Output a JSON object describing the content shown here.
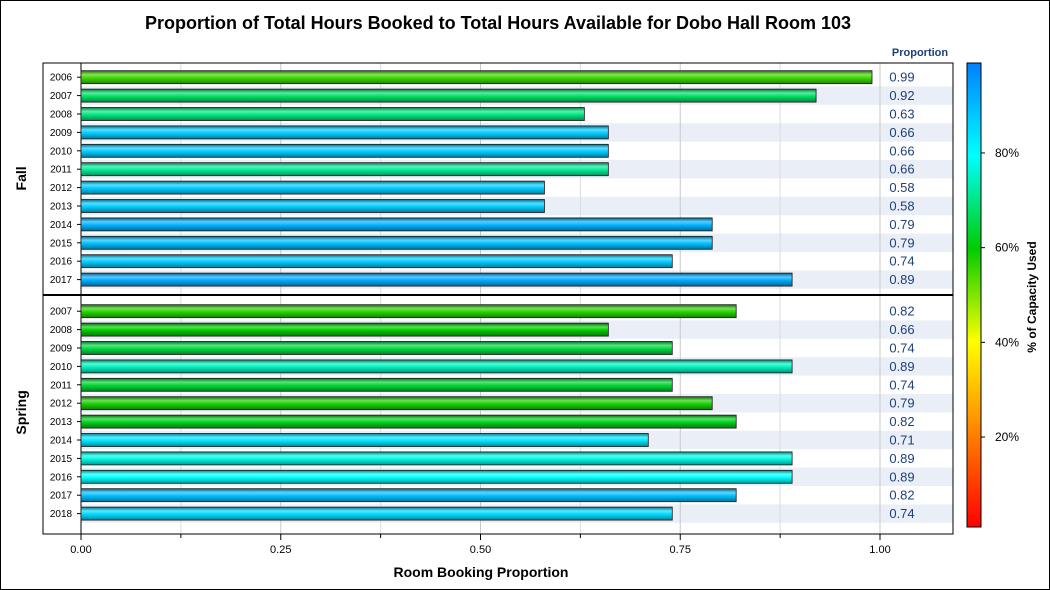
{
  "chart_data": {
    "type": "bar",
    "orientation": "horizontal",
    "title": "Proportion of Total Hours Booked to Total Hours Available for Dobo Hall Room 103",
    "xlabel": "Room Booking Proportion",
    "xlim": [
      0,
      1.0
    ],
    "xticks": [
      "0.00",
      "0.25",
      "0.50",
      "0.75",
      "1.00"
    ],
    "value_column_header": "Proportion",
    "grid": true,
    "legend": {
      "type": "colorbar",
      "title": "% of Capacity Used",
      "placement": "right",
      "ticks": [
        "20%",
        "40%",
        "60%",
        "80%"
      ],
      "colors": [
        "#ff0000",
        "#ff8000",
        "#ffff00",
        "#00cc00",
        "#00ffff",
        "#0080ff"
      ]
    },
    "groups": [
      {
        "name": "Fall",
        "categories": [
          "2006",
          "2007",
          "2008",
          "2009",
          "2010",
          "2011",
          "2012",
          "2013",
          "2014",
          "2015",
          "2016",
          "2017"
        ],
        "values": [
          0.99,
          0.92,
          0.63,
          0.66,
          0.66,
          0.66,
          0.58,
          0.58,
          0.79,
          0.79,
          0.74,
          0.89
        ],
        "labels": [
          "0.99",
          "0.92",
          "0.63",
          "0.66",
          "0.66",
          "0.66",
          "0.58",
          "0.58",
          "0.79",
          "0.79",
          "0.74",
          "0.89"
        ],
        "capacity_used": [
          55,
          68,
          70,
          88,
          88,
          72,
          88,
          88,
          92,
          90,
          88,
          93
        ]
      },
      {
        "name": "Spring",
        "categories": [
          "2007",
          "2008",
          "2009",
          "2010",
          "2011",
          "2012",
          "2013",
          "2014",
          "2015",
          "2016",
          "2017",
          "2018"
        ],
        "values": [
          0.82,
          0.66,
          0.74,
          0.89,
          0.74,
          0.79,
          0.82,
          0.71,
          0.89,
          0.89,
          0.82,
          0.74
        ],
        "labels": [
          "0.82",
          "0.66",
          "0.74",
          "0.89",
          "0.74",
          "0.79",
          "0.82",
          "0.71",
          "0.89",
          "0.89",
          "0.82",
          "0.74"
        ],
        "capacity_used": [
          57,
          60,
          65,
          75,
          64,
          58,
          62,
          84,
          78,
          80,
          90,
          86
        ]
      }
    ]
  }
}
